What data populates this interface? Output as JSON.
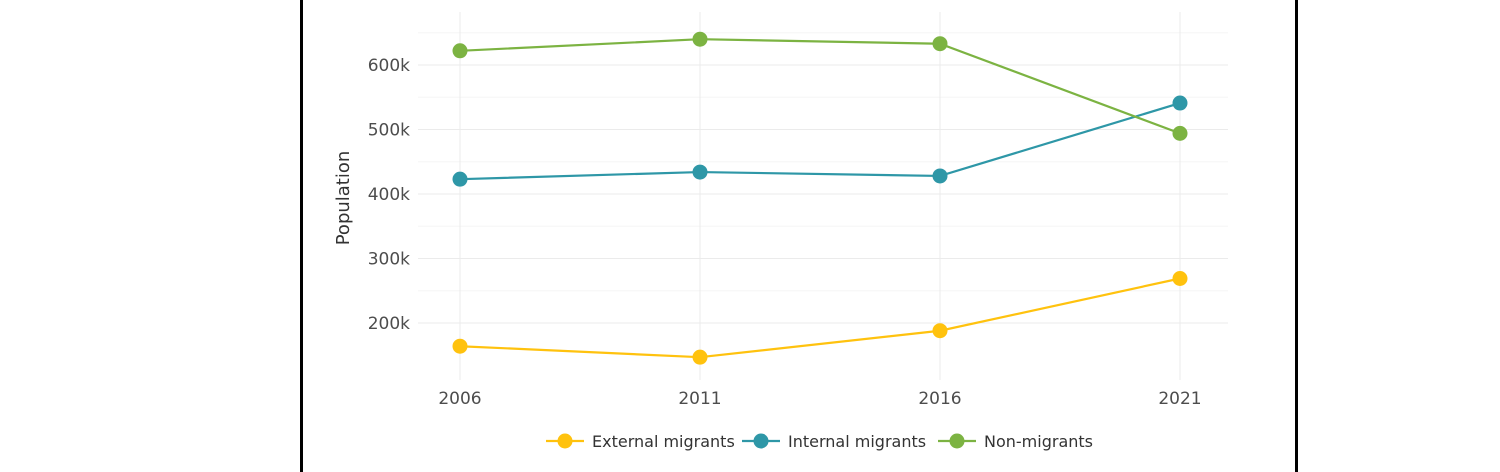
{
  "chart_data": {
    "type": "line",
    "title": "",
    "xlabel": "",
    "ylabel": "Population",
    "x": [
      "2006",
      "2011",
      "2016",
      "2021"
    ],
    "ylim": [
      100000,
      700000
    ],
    "yticks": [
      200000,
      300000,
      400000,
      500000,
      600000
    ],
    "ytick_labels": [
      "200k",
      "300k",
      "400k",
      "500k",
      "600k"
    ],
    "grid": true,
    "legend_position": "bottom",
    "series": [
      {
        "name": "External migrants",
        "color": "#FFC20E",
        "values": [
          164000,
          147000,
          188000,
          269000
        ]
      },
      {
        "name": "Internal migrants",
        "color": "#2E97A7",
        "values": [
          423000,
          434000,
          428000,
          541000
        ]
      },
      {
        "name": "Non-migrants",
        "color": "#7CB342",
        "values": [
          622000,
          640000,
          633000,
          494000
        ]
      }
    ]
  }
}
